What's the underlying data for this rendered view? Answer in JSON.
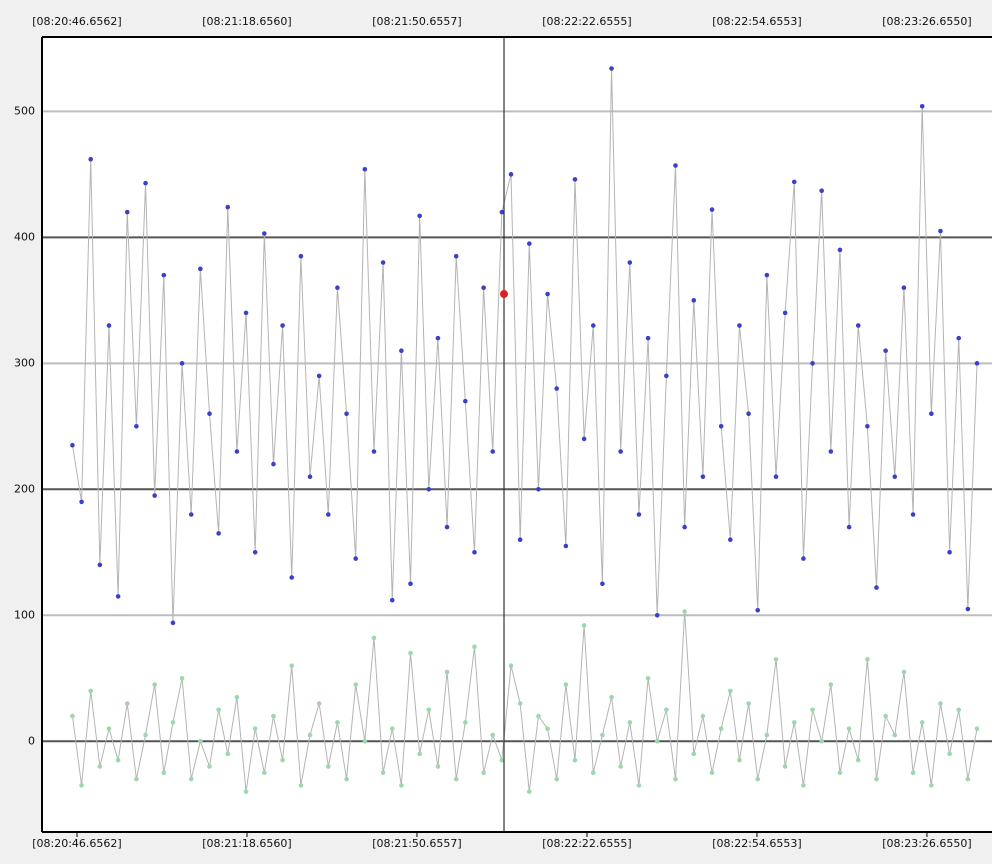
{
  "chart_data": {
    "type": "line",
    "x": [
      30045.8,
      30047.52,
      30049.24,
      30050.96,
      30052.68,
      30054.4,
      30056.12,
      30057.84,
      30059.56,
      30061.28,
      30063.0,
      30064.72,
      30066.44,
      30068.16,
      30069.88,
      30071.6,
      30073.32,
      30075.04,
      30076.76,
      30078.48,
      30080.2,
      30081.92,
      30083.64,
      30085.36,
      30087.08,
      30088.8,
      30090.52,
      30092.24,
      30093.96,
      30095.68,
      30097.4,
      30099.12,
      30100.84,
      30102.56,
      30104.28,
      30106.0,
      30107.72,
      30109.44,
      30111.16,
      30112.88,
      30114.6,
      30116.32,
      30118.04,
      30119.76,
      30121.48,
      30123.2,
      30124.92,
      30126.64,
      30128.36,
      30130.08,
      30131.8,
      30133.52,
      30135.24,
      30136.96,
      30138.68,
      30140.4,
      30142.12,
      30143.84,
      30145.56,
      30147.28,
      30149.0,
      30150.72,
      30152.44,
      30154.16,
      30155.88,
      30157.6,
      30159.32,
      30161.04,
      30162.76,
      30164.48,
      30166.2,
      30167.92,
      30169.64,
      30171.36,
      30173.08,
      30174.8,
      30176.52,
      30178.24,
      30179.96,
      30181.68,
      30183.4,
      30185.12,
      30186.84,
      30188.56,
      30190.28,
      30192.0,
      30193.72,
      30195.44,
      30197.16,
      30198.88,
      30200.6,
      30202.32,
      30204.04,
      30205.76,
      30207.48,
      30209.2,
      30210.92,
      30212.64,
      30214.36,
      30216.08
    ],
    "series": [
      {
        "color": "#3c40c8",
        "line_color": "#b4b4b4",
        "values": [
          235,
          190,
          462,
          140,
          330,
          115,
          420,
          250,
          443,
          195,
          370,
          94,
          300,
          180,
          375,
          260,
          165,
          424,
          230,
          340,
          150,
          403,
          220,
          330,
          130,
          385,
          210,
          290,
          180,
          360,
          260,
          145,
          454,
          230,
          380,
          112,
          310,
          125,
          417,
          200,
          320,
          170,
          385,
          270,
          150,
          360,
          230,
          420,
          450,
          160,
          395,
          200,
          355,
          280,
          155,
          446,
          240,
          330,
          125,
          534,
          230,
          380,
          180,
          320,
          100,
          290,
          457,
          170,
          350,
          210,
          422,
          250,
          160,
          330,
          260,
          104,
          370,
          210,
          340,
          444,
          145,
          300,
          437,
          230,
          390,
          170,
          330,
          250,
          122,
          310,
          210,
          360,
          180,
          504,
          260,
          405,
          150,
          320,
          105,
          300
        ]
      },
      {
        "color": "#9ed6ae",
        "line_color": "#b4b4b4",
        "values": [
          20,
          -35,
          40,
          -20,
          10,
          -15,
          30,
          -30,
          5,
          45,
          -25,
          15,
          50,
          -30,
          0,
          -20,
          25,
          -10,
          35,
          -40,
          10,
          -25,
          20,
          -15,
          60,
          -35,
          5,
          30,
          -20,
          15,
          -30,
          45,
          0,
          82,
          -25,
          10,
          -35,
          70,
          -10,
          25,
          -20,
          55,
          -30,
          15,
          75,
          -25,
          5,
          -15,
          60,
          30,
          -40,
          20,
          10,
          -30,
          45,
          -15,
          92,
          -25,
          5,
          35,
          -20,
          15,
          -35,
          50,
          0,
          25,
          -30,
          103,
          -10,
          20,
          -25,
          10,
          40,
          -15,
          30,
          -30,
          5,
          65,
          -20,
          15,
          -35,
          25,
          0,
          45,
          -25,
          10,
          -15,
          65,
          -30,
          20,
          5,
          55,
          -25,
          15,
          -35,
          30,
          -10,
          25,
          -30,
          10
        ]
      }
    ],
    "cursor": {
      "x": 30127.04,
      "y": 355,
      "color": "#e02020"
    },
    "xlim": [
      30040.07,
      30218.9
    ],
    "xticks": [
      {
        "value": 30046.6562,
        "label": "[08:20:46.6562]"
      },
      {
        "value": 30078.656,
        "label": "[08:21:18.6560]"
      },
      {
        "value": 30110.6557,
        "label": "[08:21:50.6557]"
      },
      {
        "value": 30142.6555,
        "label": "[08:22:22.6555]"
      },
      {
        "value": 30174.6553,
        "label": "[08:22:54.6553]"
      },
      {
        "value": 30206.655,
        "label": "[08:23:26.6550]"
      }
    ],
    "ylim": [
      -72,
      559
    ],
    "yticks": [
      0,
      100,
      200,
      300,
      400,
      500
    ],
    "grid": true
  }
}
